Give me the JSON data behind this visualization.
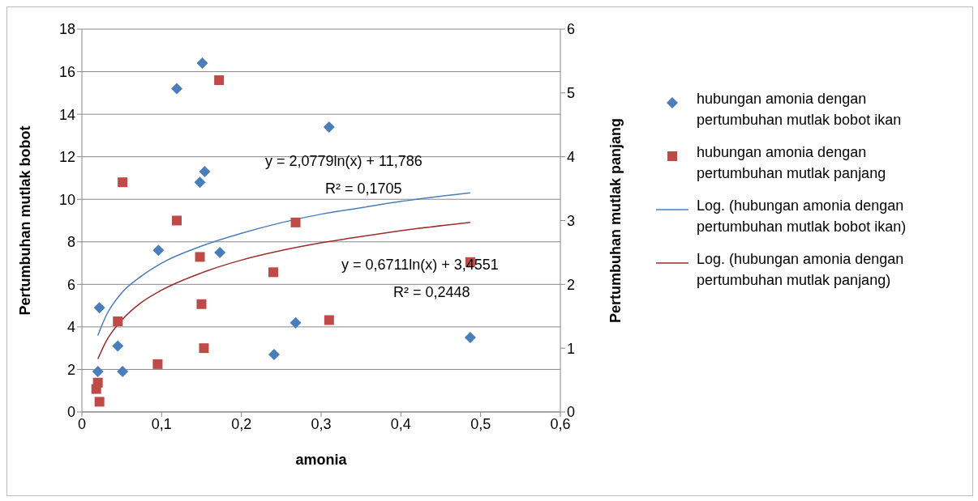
{
  "chart_data": {
    "type": "scatter",
    "xlabel": "amonia",
    "ylabel": "Pertumbuhan mutlak bobot",
    "y2label": "Pertumbuhan mutlak panjang",
    "xlim": [
      0,
      0.6
    ],
    "xticks": [
      0,
      {
        "value": 0.1,
        "label": "0,1"
      },
      {
        "value": 0.2,
        "label": "0,2"
      },
      {
        "value": 0.3,
        "label": "0,3"
      },
      {
        "value": 0.4,
        "label": "0,4"
      },
      {
        "value": 0.5,
        "label": "0,5"
      },
      {
        "value": 0.6,
        "label": "0,6"
      }
    ],
    "ylim": [
      0,
      18
    ],
    "yticks": [
      0,
      2,
      4,
      6,
      8,
      10,
      12,
      14,
      16,
      18
    ],
    "y2lim": [
      0,
      6
    ],
    "y2ticks": [
      0,
      1,
      2,
      3,
      4,
      5,
      6
    ],
    "grid": "y",
    "legend": "right",
    "line_style": "solid",
    "annotations": [
      "y = 2,0779ln(x) + 11,786",
      "R² = 0,1705",
      "y = 0,6711ln(x) + 3,4551",
      "R² = 0,2448"
    ],
    "series": [
      {
        "name": "hubungan amonia dengan pertumbuhan mutlak bobot ikan",
        "type": "scatter",
        "marker": "diamond",
        "color": "#4a7ebb",
        "x": [
          0.151,
          0.119,
          0.31,
          0.154,
          0.148,
          0.096,
          0.173,
          0.022,
          0.045,
          0.051,
          0.02,
          0.241,
          0.268,
          0.487
        ],
        "values": [
          16.4,
          15.2,
          13.4,
          11.3,
          10.8,
          7.6,
          7.5,
          4.9,
          3.1,
          1.9,
          1.9,
          2.7,
          4.2,
          3.5
        ]
      },
      {
        "name": "hubungan amonia dengan pertumbuhan mutlak panjang",
        "type": "scatter",
        "marker": "square",
        "axis": "y2",
        "color": "#be4b48",
        "x": [
          0.172,
          0.051,
          0.119,
          0.268,
          0.148,
          0.24,
          0.487,
          0.31,
          0.15,
          0.045,
          0.153,
          0.095,
          0.02,
          0.018,
          0.022
        ],
        "values": [
          5.2,
          3.6,
          3.0,
          2.97,
          2.43,
          2.19,
          2.35,
          1.44,
          1.69,
          1.42,
          1.0,
          0.75,
          0.46,
          0.36,
          0.16
        ]
      },
      {
        "name": "Log. (hubungan amonia dengan pertumbuhan mutlak bobot ikan)",
        "type": "line",
        "marker": "none",
        "color": "#4a7ebb",
        "x": [
          0.02,
          0.03,
          0.05,
          0.075,
          0.1,
          0.15,
          0.2,
          0.25,
          0.3,
          0.35,
          0.4,
          0.487
        ],
        "values": [
          3.6,
          4.5,
          5.6,
          6.4,
          7.0,
          7.8,
          8.4,
          8.9,
          9.3,
          9.6,
          9.9,
          10.3
        ]
      },
      {
        "name": "Log. (hubungan amonia dengan pertumbuhan mutlak panjang)",
        "type": "line",
        "marker": "none",
        "axis": "y2",
        "color": "#9b2d2a",
        "x": [
          0.02,
          0.03,
          0.05,
          0.075,
          0.1,
          0.15,
          0.2,
          0.25,
          0.3,
          0.35,
          0.4,
          0.487
        ],
        "values": [
          0.83,
          1.1,
          1.44,
          1.72,
          1.91,
          2.18,
          2.38,
          2.53,
          2.65,
          2.75,
          2.84,
          2.97
        ]
      }
    ]
  }
}
